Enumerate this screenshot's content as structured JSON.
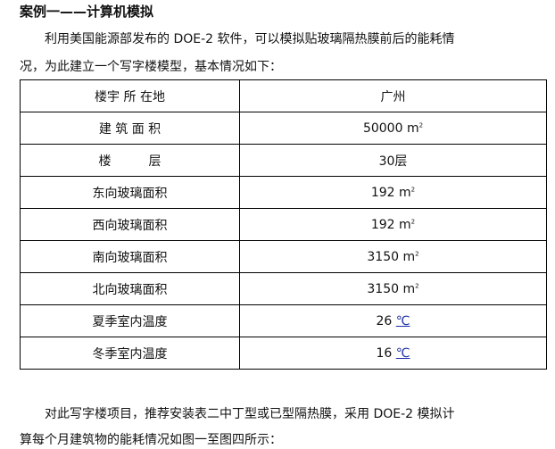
{
  "title": "案例一——计算机模拟",
  "intro": [
    "利用美国能源部发布的 DOE-2 软件，可以模拟贴玻璃隔热膜前后的能耗情",
    "况，为此建立一个写字楼模型，基本情况如下："
  ],
  "table": [
    {
      "label": "楼宇 所 在地",
      "value": "广州",
      "unit": ""
    },
    {
      "label": "建 筑 面 积",
      "value": "50000",
      "unit": "m²"
    },
    {
      "label": "楼　　　层",
      "value": "30层",
      "unit": ""
    },
    {
      "label": "东向玻璃面积",
      "value": "192",
      "unit": "m²"
    },
    {
      "label": "西向玻璃面积",
      "value": "192",
      "unit": "m²"
    },
    {
      "label": "南向玻璃面积",
      "value": "3150",
      "unit": "m²"
    },
    {
      "label": "北向玻璃面积",
      "value": "3150",
      "unit": "m²"
    },
    {
      "label": "夏季室内温度",
      "value": "26",
      "unit": "℃"
    },
    {
      "label": "冬季室内温度",
      "value": "16",
      "unit": "℃"
    }
  ],
  "outro": [
    "对此写字楼项目，推荐安装表二中丁型或已型隔热膜，采用 DOE-2 模拟计",
    "算每个月建筑物的能耗情况如图一至图四所示："
  ]
}
